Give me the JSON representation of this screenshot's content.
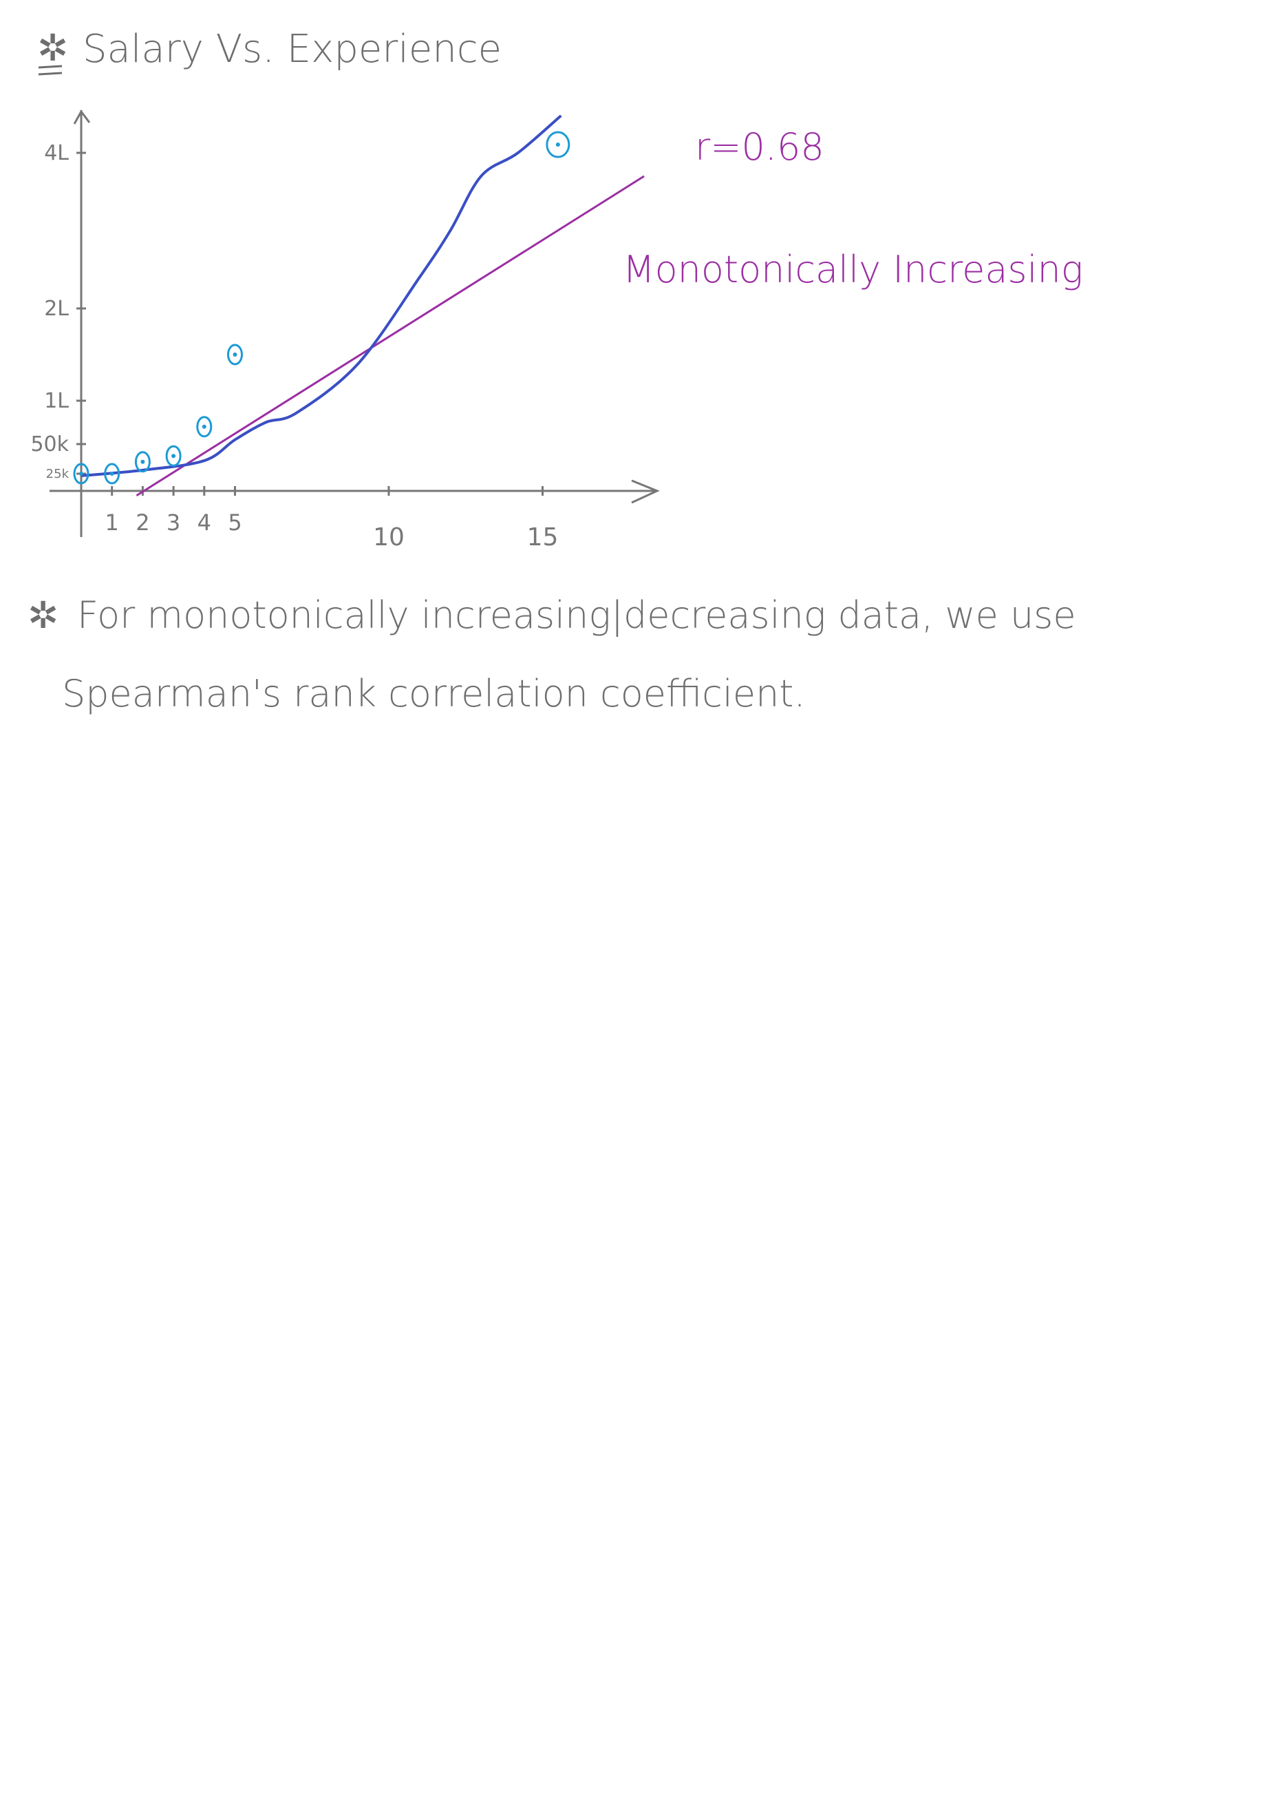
{
  "heading": {
    "star": "✲",
    "text": "Salary Vs. Experience"
  },
  "annotations": {
    "r_value": "r=0.68",
    "trend": "Monotonically Increasing"
  },
  "note": {
    "star": "✲",
    "line1": "For monotonically increasing|decreasing data, we use",
    "line2": "Spearman's rank correlation coefficient."
  },
  "chart_data": {
    "type": "scatter",
    "title": "Salary Vs. Experience",
    "xlabel": "",
    "ylabel": "",
    "x_ticks": [
      {
        "value": 1,
        "label": "1"
      },
      {
        "value": 2,
        "label": "2"
      },
      {
        "value": 3,
        "label": "3"
      },
      {
        "value": 4,
        "label": "4"
      },
      {
        "value": 5,
        "label": "5"
      },
      {
        "value": 10,
        "label": "10"
      },
      {
        "value": 15,
        "label": "15"
      }
    ],
    "y_ticks": [
      {
        "value": 25000,
        "label": "25k"
      },
      {
        "value": 50000,
        "label": "50k"
      },
      {
        "value": 100000,
        "label": "1L"
      },
      {
        "value": 200000,
        "label": "2L"
      },
      {
        "value": 400000,
        "label": "4L"
      }
    ],
    "xlim": [
      0,
      18
    ],
    "ylim": [
      0,
      460000
    ],
    "points": [
      {
        "x": 0,
        "y": 25000
      },
      {
        "x": 1,
        "y": 25000
      },
      {
        "x": 2,
        "y": 35000
      },
      {
        "x": 3,
        "y": 40000
      },
      {
        "x": 4,
        "y": 70000
      },
      {
        "x": 5,
        "y": 150000
      },
      {
        "x": 15.5,
        "y": 410000
      }
    ],
    "curve": [
      {
        "x": 0,
        "y": 22000
      },
      {
        "x": 2,
        "y": 28000
      },
      {
        "x": 4,
        "y": 36000
      },
      {
        "x": 5,
        "y": 55000
      },
      {
        "x": 6,
        "y": 75000
      },
      {
        "x": 7,
        "y": 86000
      },
      {
        "x": 9,
        "y": 140000
      },
      {
        "x": 11,
        "y": 240000
      },
      {
        "x": 12,
        "y": 300000
      },
      {
        "x": 13,
        "y": 370000
      },
      {
        "x": 14.2,
        "y": 400000
      },
      {
        "x": 15.6,
        "y": 445000
      }
    ],
    "fit_line": [
      {
        "x": 1.8,
        "y": -5000
      },
      {
        "x": 18.3,
        "y": 370000
      }
    ],
    "colors": {
      "axis": "#777777",
      "tick_text": "#777777",
      "points": "#1d9ad6",
      "curve": "#3a4fc4",
      "fit_line": "#9b2fa3",
      "annotation": "#9b2fa3",
      "text": "#6e6e6e"
    }
  }
}
